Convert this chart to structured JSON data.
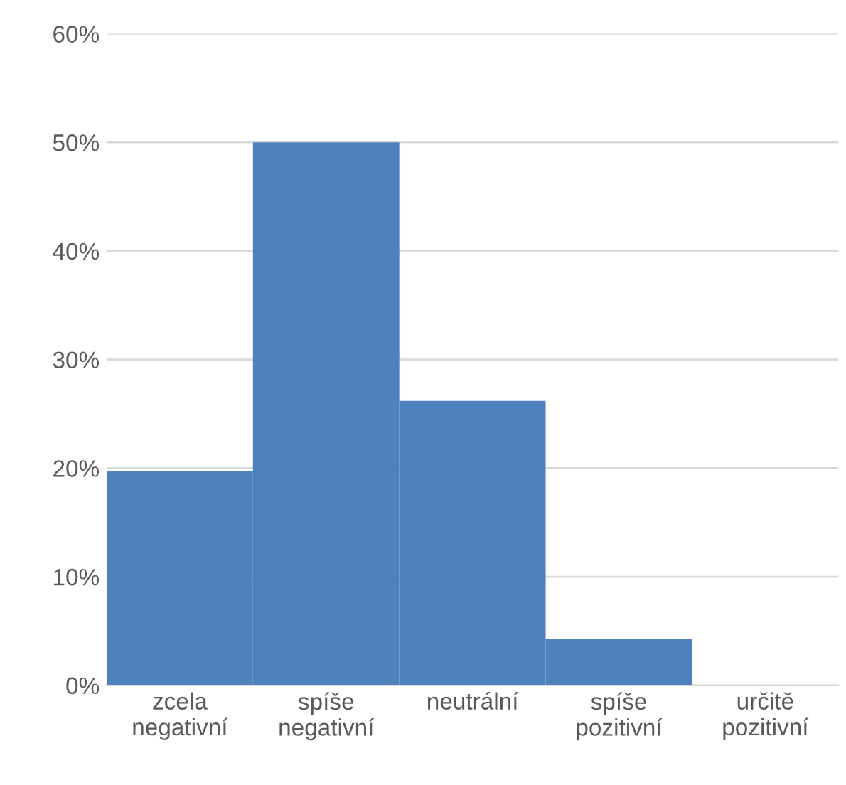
{
  "chart_data": {
    "type": "bar",
    "categories": [
      "zcela negativní",
      "spíše negativní",
      "neutrální",
      "spíše pozitivní",
      "určitě pozitivní"
    ],
    "values": [
      19.7,
      50,
      26.2,
      4.3,
      0
    ],
    "color": "#4f81bd",
    "ylim": [
      0,
      60
    ],
    "yticks": [
      {
        "value": 0,
        "label": "0%"
      },
      {
        "value": 10,
        "label": "10%"
      },
      {
        "value": 20,
        "label": "20%"
      },
      {
        "value": 30,
        "label": "30%"
      },
      {
        "value": 40,
        "label": "40%"
      },
      {
        "value": 50,
        "label": "50%"
      },
      {
        "value": 60,
        "label": "60%"
      }
    ],
    "grid": "y",
    "legend": false
  }
}
